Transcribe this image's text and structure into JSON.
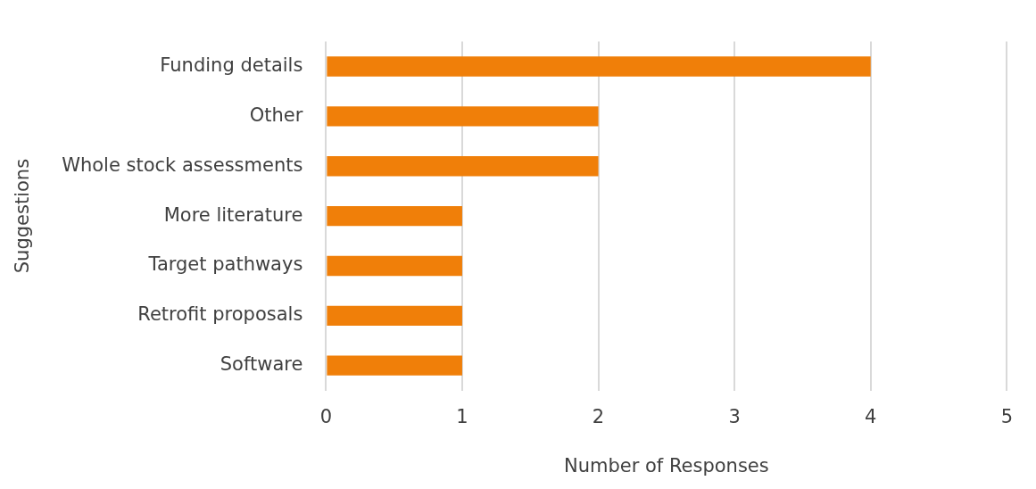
{
  "chart_data": {
    "type": "bar",
    "orientation": "horizontal",
    "xlabel": "Number of Responses",
    "ylabel": "Suggestions",
    "categories": [
      "Funding details",
      "Other",
      "Whole stock assessments",
      "More literature",
      "Target pathways",
      "Retrofit proposals",
      "Software"
    ],
    "values": [
      4,
      2,
      2,
      1,
      1,
      1,
      1
    ],
    "color": "#f07f09",
    "xlim": [
      0,
      5
    ],
    "xticks": [
      0,
      1,
      2,
      3,
      4,
      5
    ],
    "grid": "x",
    "legend": false
  }
}
